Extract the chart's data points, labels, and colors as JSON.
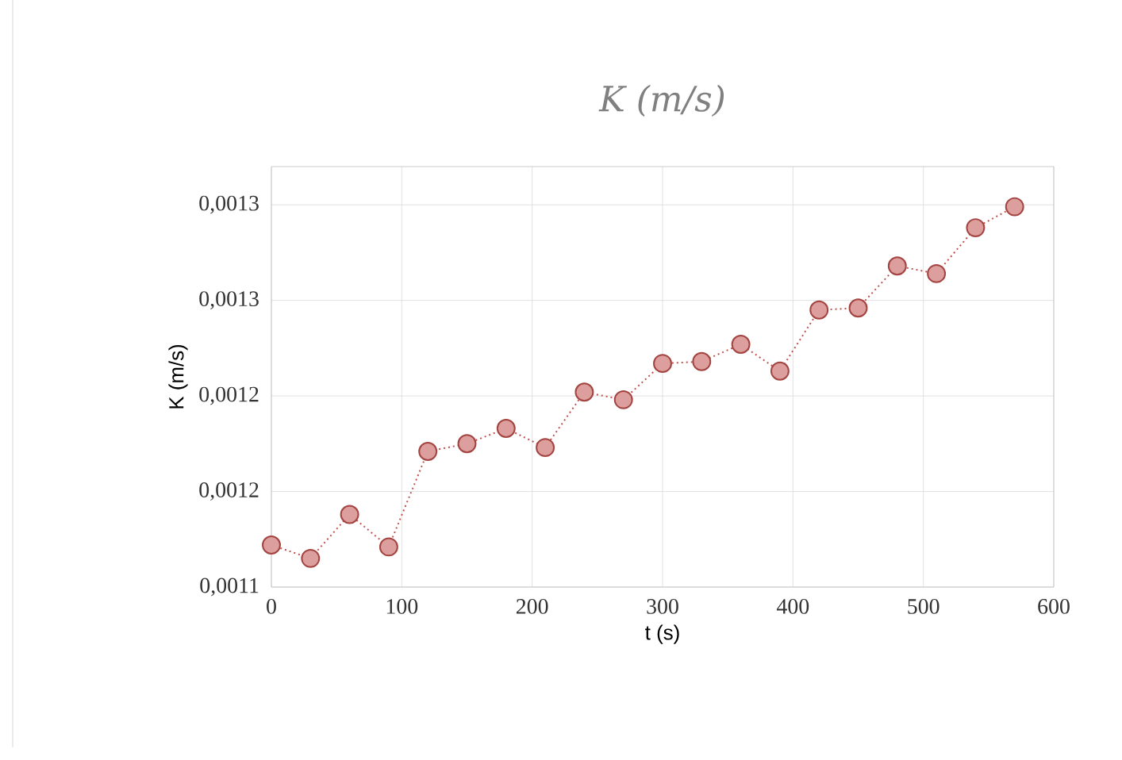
{
  "chart_data": {
    "type": "line",
    "title": "K (m/s)",
    "xlabel": "t (s)",
    "ylabel": "K (m/s)",
    "x": [
      0,
      30,
      60,
      90,
      120,
      150,
      180,
      210,
      240,
      270,
      300,
      330,
      360,
      390,
      420,
      450,
      480,
      510,
      540,
      570
    ],
    "series": [
      {
        "color": "#c0504d",
        "values": [
          0.001122,
          0.001115,
          0.001138,
          0.001121,
          0.001171,
          0.001175,
          0.001183,
          0.001173,
          0.001202,
          0.001198,
          0.001217,
          0.001218,
          0.001227,
          0.001213,
          0.001245,
          0.001246,
          0.001268,
          0.001264,
          0.001288,
          0.001299
        ]
      }
    ],
    "xlim": [
      0,
      600
    ],
    "xticks": [
      0,
      100,
      200,
      300,
      400,
      500,
      600
    ],
    "ylim": [
      0.0011,
      0.00132
    ],
    "yticks": [
      {
        "value": 0.0011,
        "label": "0,0011"
      },
      {
        "value": 0.00115,
        "label": "0,0012"
      },
      {
        "value": 0.0012,
        "label": "0,0012"
      },
      {
        "value": 0.00125,
        "label": "0,0013"
      },
      {
        "value": 0.0013,
        "label": "0,0013"
      }
    ],
    "grid": true,
    "marker": "circle",
    "line_style": "dotted"
  }
}
